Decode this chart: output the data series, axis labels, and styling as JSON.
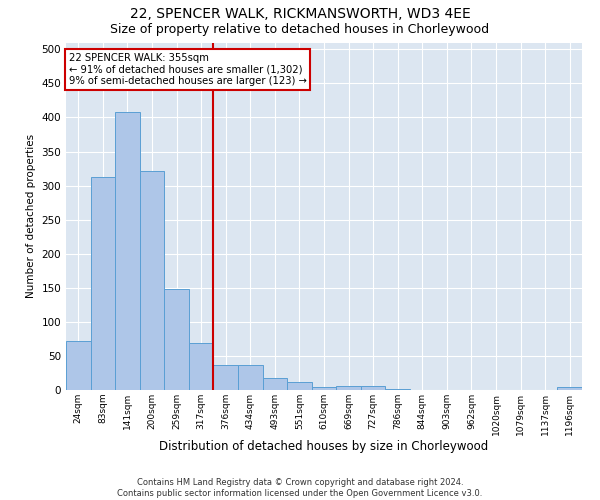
{
  "title": "22, SPENCER WALK, RICKMANSWORTH, WD3 4EE",
  "subtitle": "Size of property relative to detached houses in Chorleywood",
  "xlabel": "Distribution of detached houses by size in Chorleywood",
  "ylabel": "Number of detached properties",
  "footer_line1": "Contains HM Land Registry data © Crown copyright and database right 2024.",
  "footer_line2": "Contains public sector information licensed under the Open Government Licence v3.0.",
  "bar_labels": [
    "24sqm",
    "83sqm",
    "141sqm",
    "200sqm",
    "259sqm",
    "317sqm",
    "376sqm",
    "434sqm",
    "493sqm",
    "551sqm",
    "610sqm",
    "669sqm",
    "727sqm",
    "786sqm",
    "844sqm",
    "903sqm",
    "962sqm",
    "1020sqm",
    "1079sqm",
    "1137sqm",
    "1196sqm"
  ],
  "bar_values": [
    72,
    312,
    408,
    321,
    148,
    69,
    36,
    36,
    18,
    12,
    5,
    6,
    6,
    2,
    0,
    0,
    0,
    0,
    0,
    0,
    4
  ],
  "bar_color": "#aec6e8",
  "bar_edge_color": "#5a9fd4",
  "vline_x": 5.5,
  "annotation_text": "22 SPENCER WALK: 355sqm\n← 91% of detached houses are smaller (1,302)\n9% of semi-detached houses are larger (123) →",
  "annotation_box_color": "#ffffff",
  "annotation_border_color": "#cc0000",
  "vline_color": "#cc0000",
  "plot_bg_color": "#dce6f1",
  "ylim": [
    0,
    510
  ],
  "yticks": [
    0,
    50,
    100,
    150,
    200,
    250,
    300,
    350,
    400,
    450,
    500
  ],
  "title_fontsize": 10,
  "subtitle_fontsize": 9
}
